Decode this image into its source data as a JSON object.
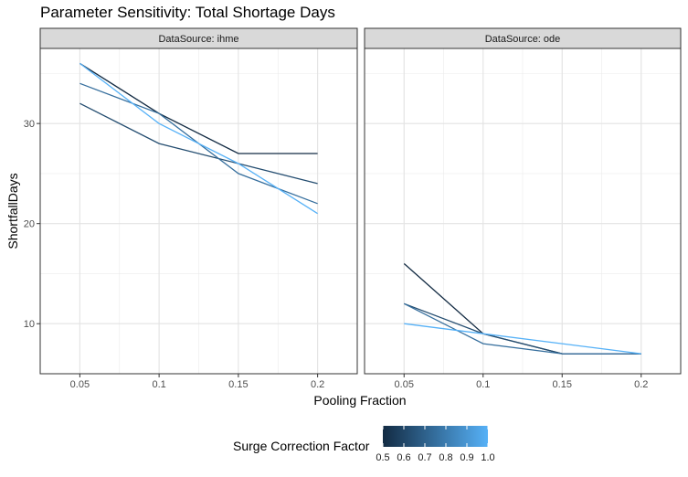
{
  "chart_data": {
    "type": "line",
    "title": "Parameter Sensitivity: Total Shortage Days",
    "xlabel": "Pooling Fraction",
    "ylabel": "ShortfallDays",
    "x": [
      0.05,
      0.1,
      0.15,
      0.2
    ],
    "x_tick_labels": [
      "0.05",
      "0.1",
      "0.15",
      "0.2"
    ],
    "y_ticks": [
      10,
      20,
      30
    ],
    "y_tick_labels": [
      "10",
      "20",
      "30"
    ],
    "ylim": [
      5,
      37.5
    ],
    "grid": true,
    "legend": {
      "title": "Surge Correction Factor",
      "position": "bottom",
      "type": "colorbar",
      "range": [
        0.5,
        1.0
      ],
      "labels": [
        "0.5",
        "0.6",
        "0.7",
        "0.8",
        "0.9",
        "1.0"
      ],
      "low_color": "#132b43",
      "high_color": "#56b1f7"
    },
    "panels": [
      {
        "label": "DataSource: ihme",
        "series": [
          {
            "factor": 0.5,
            "values": [
              36,
              31,
              27,
              27
            ]
          },
          {
            "factor": 0.625,
            "values": [
              32,
              28,
              26,
              24
            ]
          },
          {
            "factor": 0.75,
            "values": [
              34,
              31,
              25,
              22
            ]
          },
          {
            "factor": 1.0,
            "values": [
              36,
              30,
              26,
              21
            ]
          }
        ]
      },
      {
        "label": "DataSource: ode",
        "series": [
          {
            "factor": 0.5,
            "values": [
              16,
              9,
              7,
              7
            ]
          },
          {
            "factor": 0.625,
            "values": [
              12,
              9,
              7,
              7
            ]
          },
          {
            "factor": 0.75,
            "values": [
              12,
              8,
              7,
              7
            ]
          },
          {
            "factor": 1.0,
            "values": [
              10,
              9,
              8,
              7
            ]
          }
        ]
      }
    ]
  }
}
